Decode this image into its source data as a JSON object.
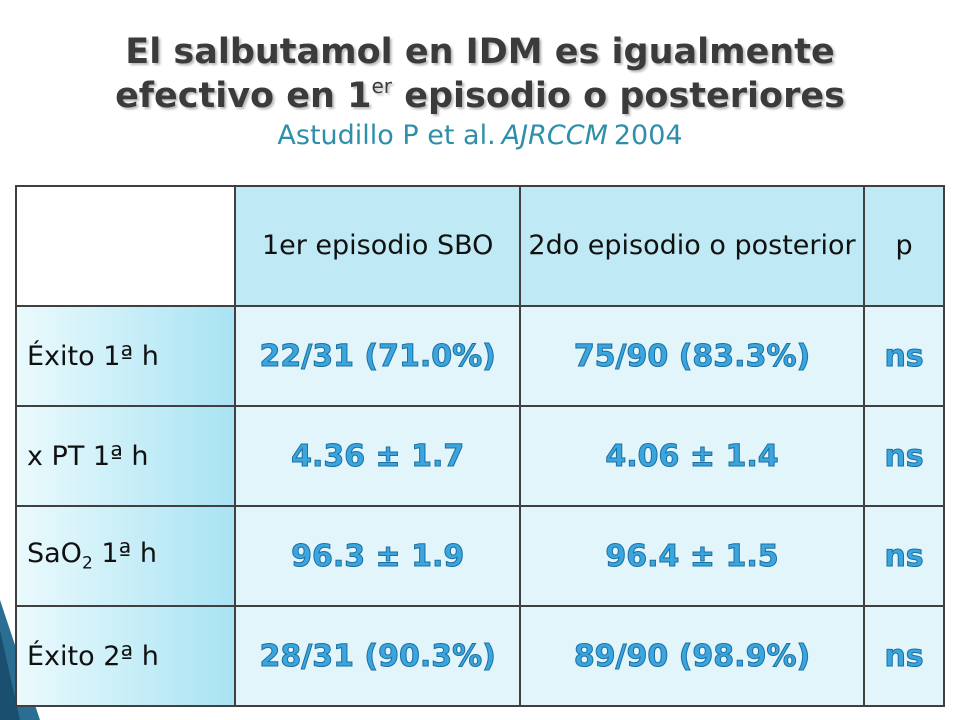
{
  "title": {
    "line1": "El salbutamol en IDM es igualmente",
    "line2": [
      "efectivo en 1",
      "er",
      " episodio o posteriores"
    ],
    "citation": [
      "Astudillo P et al.",
      "AJRCCM",
      "2004"
    ]
  },
  "table": {
    "header": [
      "1er episodio SBO",
      "2do episodio o posterior",
      "p"
    ],
    "rows": [
      {
        "label": [
          "Éxito 1ª h"
        ],
        "cells": [
          "22/31 (71.0%)",
          "75/90 (83.3%)",
          "ns"
        ]
      },
      {
        "label": [
          "x PT 1ª h"
        ],
        "cells": [
          "4.36 ± 1.7",
          "4.06 ± 1.4",
          "ns"
        ]
      },
      {
        "label": [
          "SaO",
          "2",
          " 1ª h"
        ],
        "cells": [
          "96.3 ± 1.9",
          "96.4 ± 1.5",
          "ns"
        ]
      },
      {
        "label": [
          "Éxito 2ª h"
        ],
        "cells": [
          "28/31 (90.3%)",
          "89/90 (98.9%)",
          "ns"
        ]
      }
    ]
  }
}
